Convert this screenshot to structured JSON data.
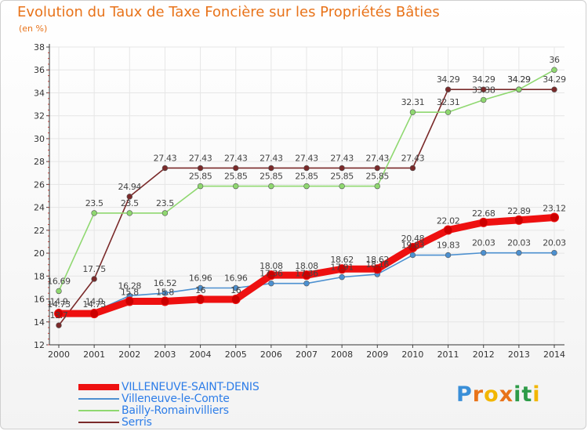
{
  "header": {
    "title": "Evolution du Taux de Taxe Foncière sur les Propriétés Bâties",
    "unit": "(en %)"
  },
  "logo": {
    "letters": [
      "P",
      "r",
      "o",
      "x",
      "i",
      "t",
      "i"
    ],
    "colors": [
      "#3a8fd8",
      "#e8731a",
      "#f2b600",
      "#e8731a",
      "#2e9b48",
      "#2e9b48",
      "#f2b600"
    ]
  },
  "chart_data": {
    "type": "line",
    "title": "Evolution du Taux de Taxe Foncière sur les Propriétés Bâties",
    "ylabel": "(en %)",
    "xlabel": "",
    "x": [
      "2000",
      "2001",
      "2002",
      "2003",
      "2004",
      "2005",
      "2006",
      "2007",
      "2008",
      "2009",
      "2010",
      "2011",
      "2012",
      "2013",
      "2014"
    ],
    "ylim": [
      12,
      38
    ],
    "yticks": [
      "12",
      "14",
      "16",
      "18",
      "20",
      "22",
      "24",
      "26",
      "28",
      "30",
      "32",
      "34",
      "36",
      "38"
    ],
    "grid": true,
    "legend_position": "bottom-left",
    "series": [
      {
        "name": "VILLENEUVE-SAINT-DENIS",
        "color": "#ee1010",
        "values": [
          14.73,
          14.73,
          15.8,
          15.8,
          15.97,
          15.97,
          18.08,
          18.08,
          18.62,
          18.62,
          20.48,
          22.02,
          22.68,
          22.89,
          23.12
        ],
        "labels": [
          "14.73",
          "14.73",
          "15.8",
          "15.8",
          "16",
          "16",
          "18.08",
          "18.08",
          "18.62",
          "18.62",
          "20.48",
          "22.02",
          "22.68",
          "22.89",
          "23.12"
        ]
      },
      {
        "name": "Villeneuve-le-Comte",
        "color": "#4c90d0",
        "values": [
          14.9,
          14.9,
          16.28,
          16.52,
          16.96,
          16.96,
          17.36,
          17.36,
          17.91,
          18.16,
          19.83,
          19.83,
          20.03,
          20.03,
          20.03
        ],
        "labels": [
          "14.9",
          "14.9",
          "16.28",
          "16.52",
          "16.96",
          "16.96",
          "17.36",
          "17.36",
          "17.91",
          "18.16",
          "19.83",
          "19.83",
          "20.03",
          "20.03",
          "20.03"
        ]
      },
      {
        "name": "Bailly-Romainvilliers",
        "color": "#8fd870",
        "values": [
          16.69,
          23.5,
          23.5,
          23.5,
          25.85,
          25.85,
          25.85,
          25.85,
          25.85,
          25.85,
          32.31,
          32.31,
          33.38,
          34.29,
          36
        ],
        "labels": [
          "16.69",
          "23.5",
          "23.5",
          "23.5",
          "25.85",
          "25.85",
          "25.85",
          "25.85",
          "25.85",
          "25.85",
          "32.31",
          "32.31",
          "33.38",
          "34.29",
          "36"
        ]
      },
      {
        "name": "Serris",
        "color": "#7a2a2a",
        "values": [
          13.7,
          17.75,
          24.94,
          27.43,
          27.43,
          27.43,
          27.43,
          27.43,
          27.43,
          27.43,
          27.43,
          34.29,
          34.29,
          34.29,
          34.29
        ],
        "labels": [
          "13.7",
          "17.75",
          "24.94",
          "27.43",
          "27.43",
          "27.43",
          "27.43",
          "27.43",
          "27.43",
          "27.43",
          "27.43",
          "34.29",
          "34.29",
          "34.29",
          "34.29"
        ]
      }
    ]
  }
}
